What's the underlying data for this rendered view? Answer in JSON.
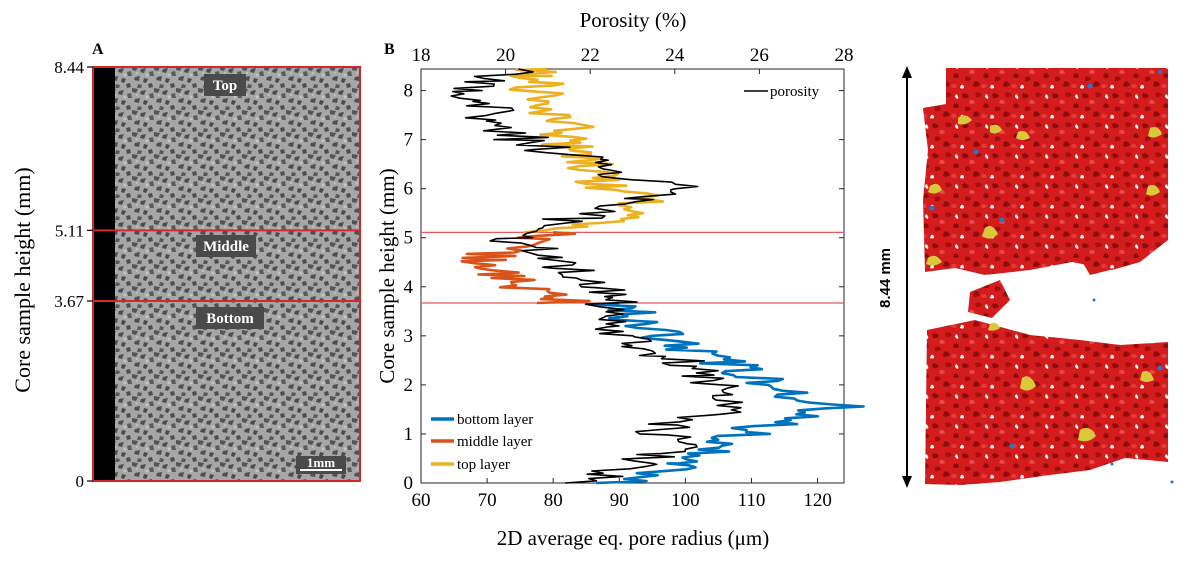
{
  "panel_a": {
    "label": "A",
    "ylabel": "Core sample height (mm)",
    "ticks": [
      {
        "value": 0,
        "label": "0"
      },
      {
        "value": 3.67,
        "label": "3.67"
      },
      {
        "value": 5.11,
        "label": "5.11"
      },
      {
        "value": 8.44,
        "label": "8.44"
      }
    ],
    "boundaries_mm": [
      3.67,
      5.11
    ],
    "regions": [
      {
        "name": "Top",
        "label": "Top",
        "center_mm": 8.0
      },
      {
        "name": "Middle",
        "label": "Middle",
        "center_mm": 4.8
      },
      {
        "name": "Bottom",
        "label": "Bottom",
        "center_mm": 3.3
      }
    ],
    "scale_bar_label": "1mm",
    "colors": {
      "grain": "#a9a9a9",
      "pore": "#555555",
      "boundary": "#d62728",
      "edge": "#000000"
    }
  },
  "panel_b": {
    "label": "B",
    "chart_data": {
      "type": "line",
      "title": "",
      "top_axis_label": "Porosity (%)",
      "xlabel": "2D average eq. pore radius (μm)",
      "ylabel": "Core sample height (mm)",
      "xlim": [
        60,
        124
      ],
      "xticks": [
        60,
        70,
        80,
        90,
        100,
        110,
        120
      ],
      "top_xlim": [
        18,
        28
      ],
      "top_xticks": [
        18,
        20,
        22,
        24,
        26,
        28
      ],
      "ylim": [
        0,
        8.44
      ],
      "yticks": [
        0,
        1,
        2,
        3,
        4,
        5,
        6,
        7,
        8
      ],
      "hlines": [
        3.67,
        5.11
      ],
      "legend_top": {
        "label": "porosity",
        "position": "top-right"
      },
      "legend_bottom": {
        "position": "bottom-left",
        "entries": [
          "bottom layer",
          "middle layer",
          "top layer"
        ]
      },
      "series": [
        {
          "name": "bottom layer",
          "color": "#0072bd",
          "axis": "bottom",
          "y": [
            0.0,
            0.2,
            0.4,
            0.6,
            0.8,
            1.0,
            1.2,
            1.4,
            1.6,
            1.8,
            2.0,
            2.2,
            2.4,
            2.6,
            2.8,
            3.0,
            3.2,
            3.4,
            3.67
          ],
          "values": [
            91,
            95,
            100,
            104,
            106,
            109,
            113,
            118,
            124,
            116,
            114,
            110,
            107,
            102,
            99,
            97,
            94,
            92,
            90
          ]
        },
        {
          "name": "middle layer",
          "color": "#d95319",
          "axis": "bottom",
          "y": [
            3.67,
            3.8,
            3.95,
            4.1,
            4.25,
            4.4,
            4.55,
            4.7,
            4.85,
            5.0,
            5.11
          ],
          "values": [
            82,
            79,
            76,
            74,
            73,
            71,
            69,
            71,
            74,
            77,
            80
          ]
        },
        {
          "name": "top layer",
          "color": "#edb120",
          "axis": "bottom",
          "y": [
            5.11,
            5.3,
            5.5,
            5.7,
            5.9,
            6.1,
            6.3,
            6.5,
            6.7,
            6.9,
            7.1,
            7.3,
            7.5,
            7.7,
            7.9,
            8.1,
            8.3,
            8.44
          ],
          "values": [
            80,
            86,
            92,
            93,
            91,
            88,
            87,
            86,
            84,
            82,
            81,
            82,
            80,
            79,
            78,
            77,
            78,
            79
          ]
        },
        {
          "name": "porosity",
          "color": "#000000",
          "axis": "top",
          "y": [
            0.0,
            0.2,
            0.4,
            0.6,
            0.8,
            1.0,
            1.2,
            1.4,
            1.6,
            1.8,
            2.0,
            2.2,
            2.4,
            2.6,
            2.8,
            3.0,
            3.2,
            3.4,
            3.6,
            3.8,
            4.0,
            4.2,
            4.4,
            4.6,
            4.8,
            5.0,
            5.2,
            5.4,
            5.6,
            5.8,
            6.0,
            6.2,
            6.4,
            6.6,
            6.8,
            7.0,
            7.2,
            7.4,
            7.6,
            7.8,
            8.0,
            8.2,
            8.44
          ],
          "values": [
            22.1,
            22.6,
            22.9,
            23.6,
            24.2,
            23.6,
            24.0,
            24.6,
            25.8,
            25.2,
            25.0,
            24.8,
            24.2,
            23.8,
            23.2,
            22.9,
            22.5,
            22.4,
            22.5,
            22.3,
            22.1,
            21.9,
            21.4,
            21.2,
            20.6,
            20.2,
            20.7,
            21.6,
            22.6,
            23.1,
            24.2,
            23.0,
            22.4,
            21.8,
            21.0,
            20.4,
            20.0,
            19.8,
            19.6,
            19.4,
            19.3,
            19.6,
            20.3
          ]
        }
      ]
    }
  },
  "panel_c": {
    "scale_label": "8.44 mm",
    "colors": {
      "red": "#d41c1c",
      "dark_red": "#8c0c0c",
      "yellow": "#d9c83a",
      "blue": "#1f78d1"
    }
  }
}
